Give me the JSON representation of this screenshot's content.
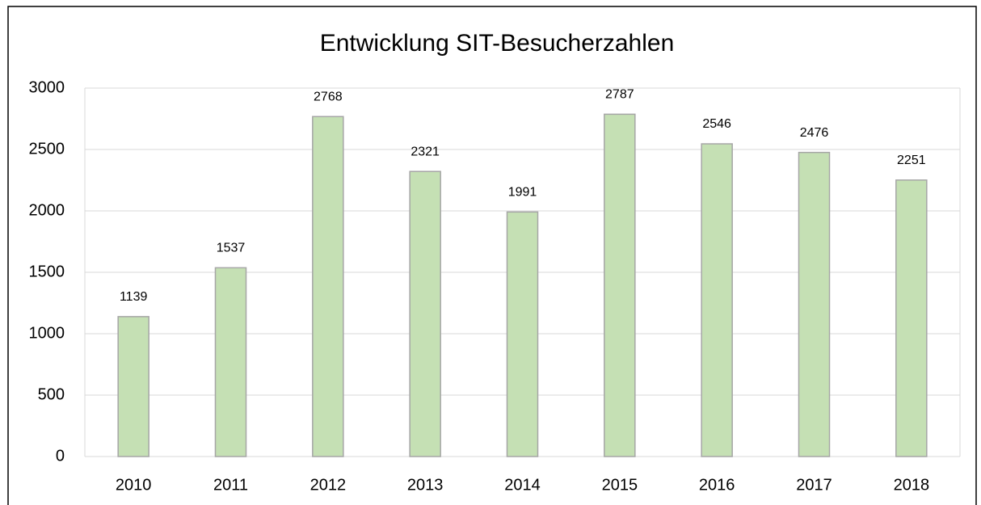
{
  "chart_data": {
    "type": "bar",
    "title": "Entwicklung SIT-Besucherzahlen",
    "categories": [
      "2010",
      "2011",
      "2012",
      "2013",
      "2014",
      "2015",
      "2016",
      "2017",
      "2018"
    ],
    "values": [
      1139,
      1537,
      2768,
      2321,
      1991,
      2787,
      2546,
      2476,
      2251
    ],
    "color": "#c5e0b4",
    "ylim": [
      0,
      3000
    ],
    "yticks": [
      0,
      500,
      1000,
      1500,
      2000,
      2500,
      3000
    ],
    "grid": true
  }
}
